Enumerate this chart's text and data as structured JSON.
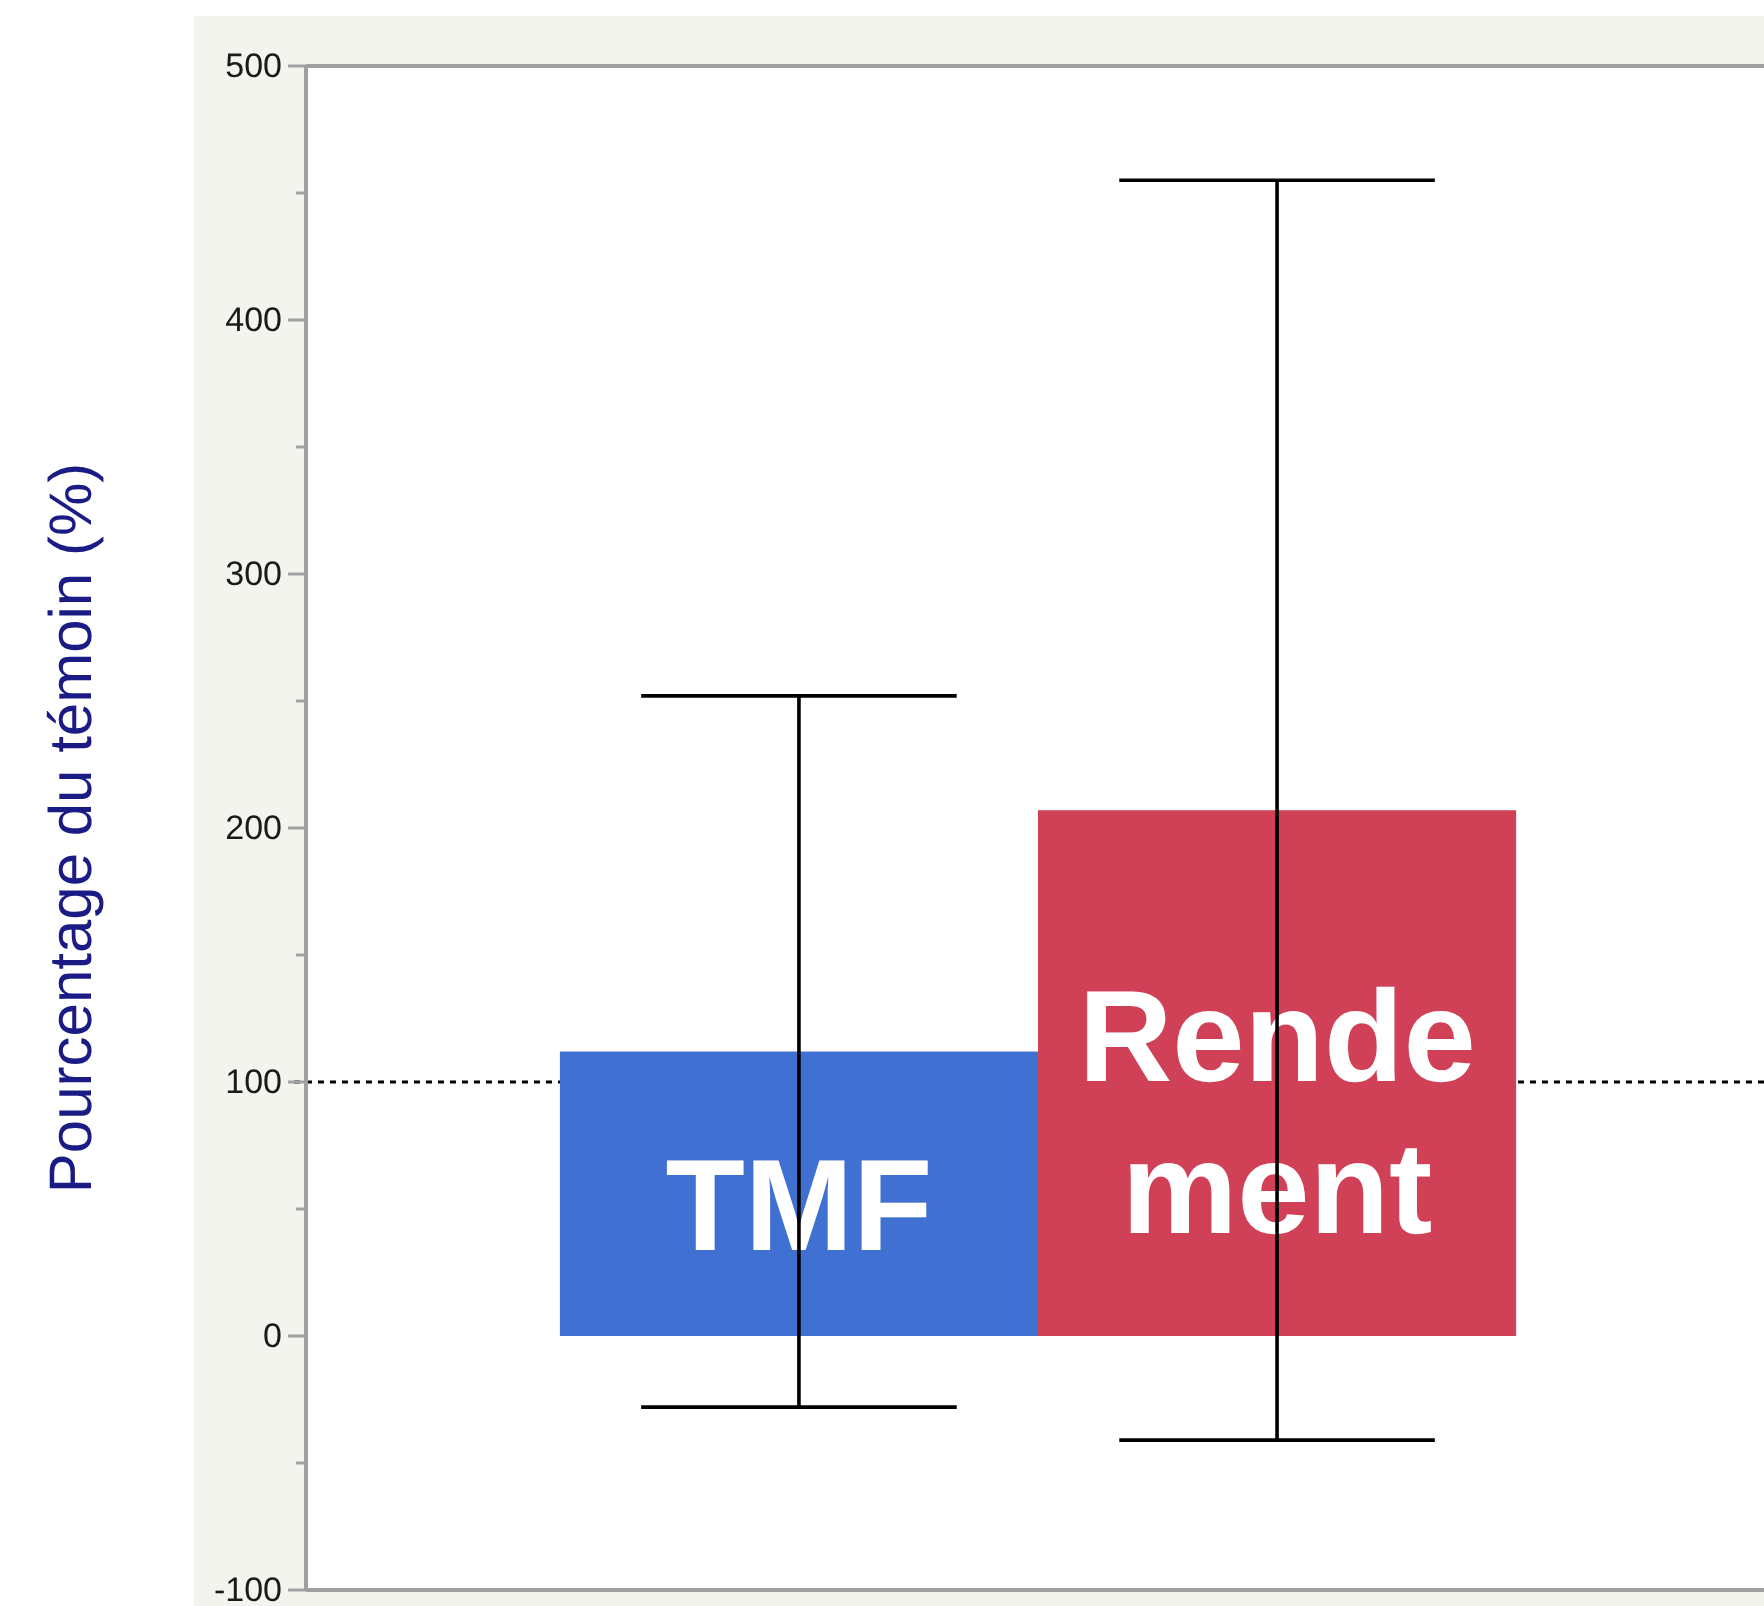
{
  "chart_data": {
    "type": "bar",
    "ylabel": "Pourcentage du témoin (%)",
    "categories": [
      "TMF",
      "Rendement"
    ],
    "values": [
      112,
      207
    ],
    "colors": [
      "#4170d3",
      "#d04157"
    ],
    "errors": [
      140,
      248
    ],
    "ylim": [
      -100,
      500
    ],
    "yticks": [
      -100,
      {
        "value": -50,
        "label": null
      },
      0,
      {
        "value": 50,
        "label": null
      },
      100,
      {
        "value": 150,
        "label": null
      },
      200,
      {
        "value": 250,
        "label": null
      },
      300,
      {
        "value": 350,
        "label": null
      },
      400,
      {
        "value": 450,
        "label": null
      },
      500
    ],
    "ref_lines": [
      {
        "axis": "y",
        "value": 100,
        "line_style": "dotted",
        "color": "#000000"
      }
    ]
  }
}
